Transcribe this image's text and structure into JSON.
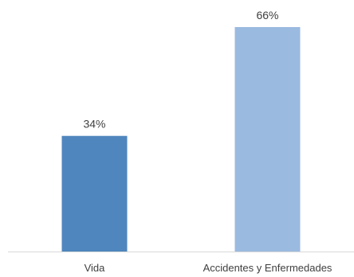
{
  "chart_data": {
    "type": "bar",
    "categories": [
      "Vida",
      "Accidentes y Enfermedades"
    ],
    "values": [
      34,
      66
    ],
    "data_labels": [
      "34%",
      "66%"
    ],
    "unit": "%",
    "title": "",
    "xlabel": "",
    "ylabel": "",
    "ylim": [
      0,
      66
    ],
    "grid": false,
    "legend": "none",
    "colors": [
      "#4F86BD",
      "#9BBAE0"
    ],
    "axis_color": "#D9D9D9",
    "text_color": "#404040"
  }
}
